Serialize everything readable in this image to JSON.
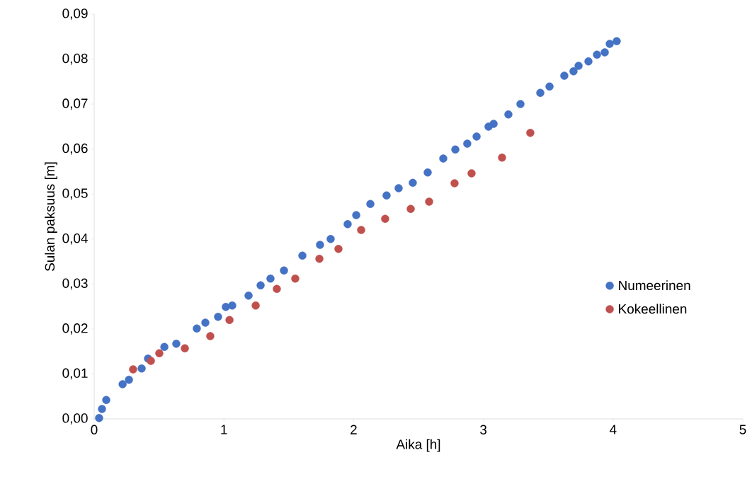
{
  "chart_data": {
    "type": "scatter",
    "xlabel": "Aika [h]",
    "ylabel": "Sulan paksuus [m]",
    "xlim": [
      0,
      5
    ],
    "xticks": [
      0,
      1,
      2,
      3,
      4,
      5
    ],
    "ylim": [
      0,
      0.09
    ],
    "yticks": [
      {
        "value": 0,
        "label": "0,00"
      },
      {
        "value": 0.01,
        "label": "0,01"
      },
      {
        "value": 0.02,
        "label": "0,02"
      },
      {
        "value": 0.03,
        "label": "0,03"
      },
      {
        "value": 0.04,
        "label": "0,04"
      },
      {
        "value": 0.05,
        "label": "0,05"
      },
      {
        "value": 0.06,
        "label": "0,06"
      },
      {
        "value": 0.07,
        "label": "0,07"
      },
      {
        "value": 0.08,
        "label": "0,08"
      },
      {
        "value": 0.09,
        "label": "0,09"
      }
    ],
    "grid": false,
    "legend": "right",
    "marker": "circle",
    "series": [
      {
        "name": "Numeerinen",
        "color": "#4472c4",
        "x": [
          0.038,
          0.06,
          0.093,
          0.219,
          0.268,
          0.366,
          0.415,
          0.541,
          0.633,
          0.791,
          0.857,
          0.955,
          1.015,
          1.064,
          1.19,
          1.283,
          1.359,
          1.463,
          1.605,
          1.741,
          1.823,
          1.954,
          2.02,
          2.129,
          2.254,
          2.347,
          2.456,
          2.571,
          2.691,
          2.784,
          2.876,
          2.948,
          3.04,
          3.079,
          3.193,
          3.286,
          3.439,
          3.51,
          3.624,
          3.695,
          3.734,
          3.81,
          3.876,
          3.936,
          3.974,
          4.028
        ],
        "values": [
          0.0002,
          0.0022,
          0.0042,
          0.0077,
          0.0087,
          0.0112,
          0.0134,
          0.016,
          0.0167,
          0.0201,
          0.0214,
          0.0227,
          0.0249,
          0.0252,
          0.0274,
          0.0297,
          0.0312,
          0.033,
          0.0363,
          0.0387,
          0.04,
          0.0433,
          0.0453,
          0.0478,
          0.0497,
          0.0513,
          0.0525,
          0.0548,
          0.0579,
          0.0599,
          0.0612,
          0.0628,
          0.065,
          0.0656,
          0.0677,
          0.07,
          0.0725,
          0.0739,
          0.0763,
          0.0773,
          0.0785,
          0.0795,
          0.081,
          0.0815,
          0.0834,
          0.084
        ]
      },
      {
        "name": "Kokeellinen",
        "color": "#c0504d",
        "x": [
          0.3,
          0.437,
          0.502,
          0.699,
          0.895,
          1.043,
          1.245,
          1.408,
          1.55,
          1.736,
          1.883,
          2.058,
          2.243,
          2.44,
          2.582,
          2.778,
          2.909,
          3.144,
          3.362
        ],
        "values": [
          0.011,
          0.0129,
          0.0146,
          0.0157,
          0.0184,
          0.022,
          0.0252,
          0.0289,
          0.0312,
          0.0356,
          0.0378,
          0.042,
          0.0445,
          0.0467,
          0.0483,
          0.0524,
          0.0546,
          0.0581,
          0.0636
        ]
      }
    ]
  }
}
